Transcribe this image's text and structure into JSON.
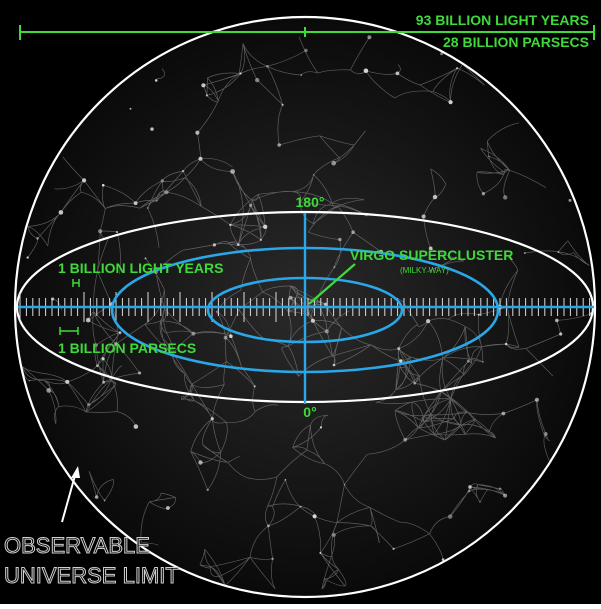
{
  "scale_bar": {
    "line1": "93 BILLION LIGHT YEARS",
    "line2": "28 BILLION PARSECS"
  },
  "angles": {
    "top": "180°",
    "bottom": "0°"
  },
  "scale_labels": {
    "light_years": "1 BILLION LIGHT YEARS",
    "parsecs": "1 BILLION PARSECS"
  },
  "supercluster": {
    "title": "VIRGO SUPERCLUSTER",
    "subtitle": "(MILKY WAY)"
  },
  "boundary_label": {
    "line1": "OBSERVABLE",
    "line2": "UNIVERSE LIMIT"
  },
  "colors": {
    "background": "#000000",
    "label_green": "#3fd93a",
    "blue": "#2aa7e8",
    "white": "#ffffff",
    "gray_label": "#bfbfbf"
  }
}
